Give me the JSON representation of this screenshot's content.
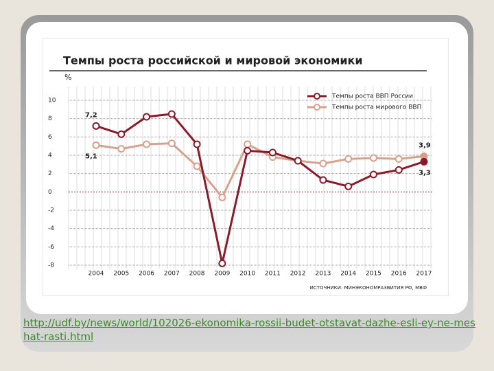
{
  "chart_data": {
    "type": "line",
    "title": "Темпы роста российской и мировой экономики",
    "ylabel": "%",
    "source": "ИСТОЧНИКИ: МИНЭКОНОМРАЗВИТИЯ РФ, МВФ",
    "categories": [
      "2004",
      "2005",
      "2006",
      "2007",
      "2008",
      "2009",
      "2010",
      "2011",
      "2012",
      "2013",
      "2014",
      "2015",
      "2016",
      "2017"
    ],
    "series": [
      {
        "name": "Темпы роста ВВП России",
        "color": "#8b1a2b",
        "values": [
          7.2,
          6.3,
          8.2,
          8.5,
          5.2,
          -7.8,
          4.5,
          4.3,
          3.4,
          1.3,
          0.6,
          1.9,
          2.4,
          3.3
        ],
        "value_labels": [
          "7,2",
          null,
          null,
          null,
          null,
          null,
          null,
          null,
          null,
          null,
          null,
          null,
          null,
          "3,3"
        ]
      },
      {
        "name": "Темпы роста мирового ВВП",
        "color": "#d9a08c",
        "values": [
          5.1,
          4.7,
          5.2,
          5.3,
          2.8,
          -0.6,
          5.2,
          3.8,
          3.4,
          3.1,
          3.6,
          3.7,
          3.6,
          3.9
        ],
        "value_labels": [
          "5,1",
          null,
          null,
          null,
          null,
          null,
          null,
          null,
          null,
          null,
          null,
          null,
          null,
          "3,9"
        ]
      }
    ],
    "ylim": [
      -8,
      10
    ],
    "yticks": [
      -8,
      -6,
      -4,
      -2,
      0,
      2,
      4,
      6,
      8,
      10
    ],
    "grid": true,
    "legend": "top-right"
  },
  "link": "http://udf.by/news/world/102026-ekonomika-rossii-budet-otstavat-dazhe-esli-ey-ne-meshat-rasti.html"
}
